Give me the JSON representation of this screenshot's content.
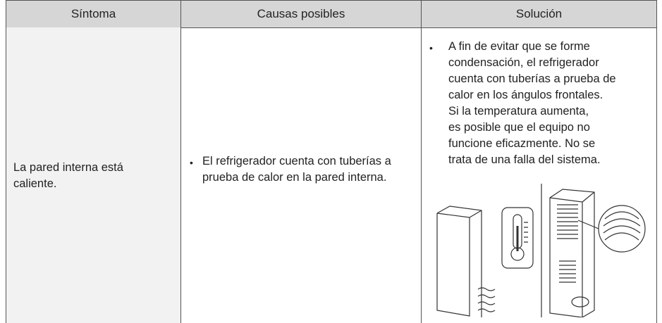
{
  "table": {
    "headers": [
      "Síntoma",
      "Causas posibles",
      "Solución"
    ],
    "rows": [
      [
        "La pared interna está caliente.",
        "El refrigerador cuenta con tuberías a prueba de calor en la pared interna.",
        [
          "A fin de evitar que se forme",
          "condensación, el refrigerador",
          "cuenta con tuberías a prueba de",
          "calor en los ángulos frontales.",
          "Si la temperatura aumenta,",
          "es posible que el equipo no",
          "funcione eficazmente. No se",
          "trata de una falla del sistema."
        ]
      ]
    ]
  }
}
